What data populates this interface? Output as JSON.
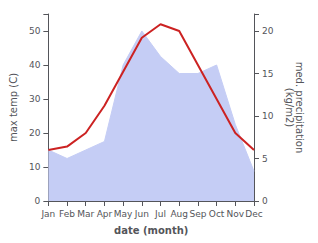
{
  "chart_data": {
    "type": "line",
    "xlabel": "date (month)",
    "ylabel": "max temp (C)",
    "y2label": "med. precipitation\n(kg/m2)",
    "categories": [
      "Jan",
      "Feb",
      "Mar",
      "Apr",
      "May",
      "Jun",
      "Jul",
      "Aug",
      "Sep",
      "Oct",
      "Nov",
      "Dec"
    ],
    "series": [
      {
        "type": "area",
        "axis": "y2",
        "color": "#c5cdf5",
        "values": [
          6,
          5,
          6,
          7,
          16,
          20,
          17,
          15,
          15,
          16,
          9,
          3.5
        ]
      },
      {
        "type": "line",
        "color": "#cc2222",
        "values": [
          15,
          16,
          20,
          28,
          38,
          48,
          52,
          50,
          40,
          30,
          20,
          15
        ]
      }
    ],
    "ylim": [
      0,
      55
    ],
    "yticks": [
      0,
      10,
      20,
      30,
      40,
      50
    ],
    "y2lim": [
      0,
      22
    ],
    "y2ticks": [
      0,
      5,
      10,
      15,
      20
    ],
    "grid": false
  }
}
